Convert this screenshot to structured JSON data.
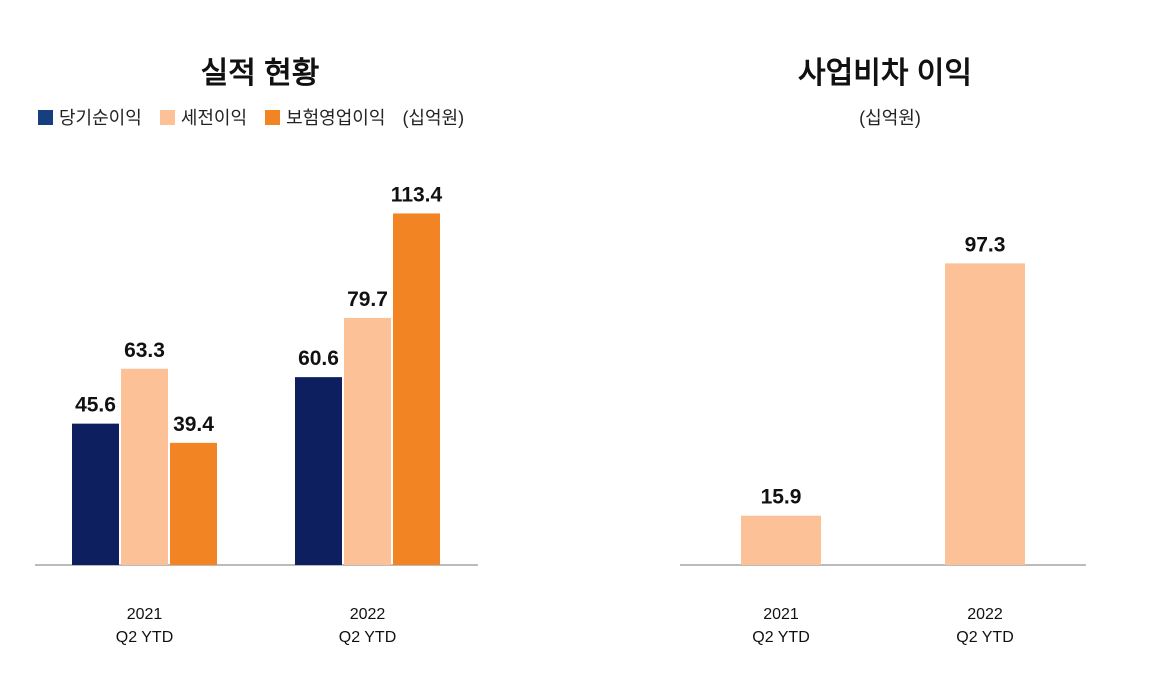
{
  "chart_data": [
    {
      "type": "bar",
      "title": "실적 현황",
      "unit_note": "(십억원)",
      "categories": [
        [
          "2021",
          "Q2 YTD"
        ],
        [
          "2022",
          "Q2 YTD"
        ]
      ],
      "series": [
        {
          "name": "당기순이익",
          "color": "#0d1f5e",
          "legend_color": "#173e7f",
          "values": [
            45.6,
            60.6
          ]
        },
        {
          "name": "세전이익",
          "color": "#fcc196",
          "legend_color": "#fcc196",
          "values": [
            63.3,
            79.7
          ]
        },
        {
          "name": "보험영업이익",
          "color": "#f28424",
          "legend_color": "#f28424",
          "values": [
            39.4,
            113.4
          ]
        }
      ],
      "legend_placement": "top-left",
      "grid": false
    },
    {
      "type": "bar",
      "title": "사업비차 이익",
      "unit_note": "(십억원)",
      "categories": [
        [
          "2021",
          "Q2 YTD"
        ],
        [
          "2022",
          "Q2 YTD"
        ]
      ],
      "series": [
        {
          "color": "#fcc196",
          "values": [
            15.9,
            97.3
          ]
        }
      ],
      "grid": false
    }
  ]
}
